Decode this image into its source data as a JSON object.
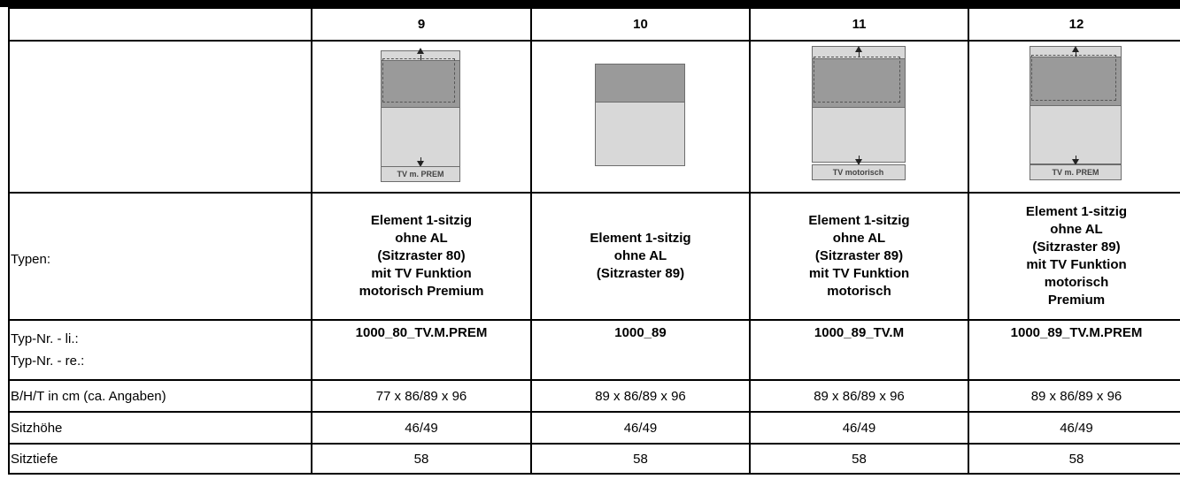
{
  "columns": [
    {
      "number": "9",
      "image": {
        "icon": "seat-tv-premium-diagram",
        "caption": "TV m. PREM"
      },
      "type_lines": [
        "Element 1-sitzig",
        "ohne AL",
        "(Sitzraster 80)",
        "mit TV Funktion",
        "motorisch Premium"
      ],
      "type_nr_left": "1000_80_TV.M.PREM",
      "type_nr_right": "",
      "dimensions": "77 x 86/89 x 96",
      "seat_height": "46/49",
      "seat_depth": "58"
    },
    {
      "number": "10",
      "image": {
        "icon": "seat-plain-diagram",
        "caption": ""
      },
      "type_lines": [
        "Element 1-sitzig",
        "ohne AL",
        "(Sitzraster 89)"
      ],
      "type_nr_left": "1000_89",
      "type_nr_right": "",
      "dimensions": "89 x 86/89 x 96",
      "seat_height": "46/49",
      "seat_depth": "58"
    },
    {
      "number": "11",
      "image": {
        "icon": "seat-tv-motor-diagram",
        "caption": "TV motorisch"
      },
      "type_lines": [
        "Element 1-sitzig",
        "ohne AL",
        "(Sitzraster 89)",
        "mit TV Funktion",
        "motorisch"
      ],
      "type_nr_left": "1000_89_TV.M",
      "type_nr_right": "",
      "dimensions": "89 x 86/89 x 96",
      "seat_height": "46/49",
      "seat_depth": "58"
    },
    {
      "number": "12",
      "image": {
        "icon": "seat-tv-premium-diagram",
        "caption": "TV m. PREM"
      },
      "type_lines": [
        "Element 1-sitzig",
        "ohne AL",
        "(Sitzraster 89)",
        "mit TV Funktion",
        "motorisch",
        "Premium"
      ],
      "type_nr_left": "1000_89_TV.M.PREM",
      "type_nr_right": "",
      "dimensions": "89 x 86/89 x 96",
      "seat_height": "46/49",
      "seat_depth": "58"
    }
  ],
  "row_labels": {
    "types": "Typen:",
    "type_nr_left": "Typ-Nr. - li.:",
    "type_nr_right": "Typ-Nr. - re.:",
    "dimensions": "B/H/T in cm (ca. Angaben)",
    "seat_height": "Sitzhöhe",
    "seat_depth": "Sitztiefe"
  }
}
